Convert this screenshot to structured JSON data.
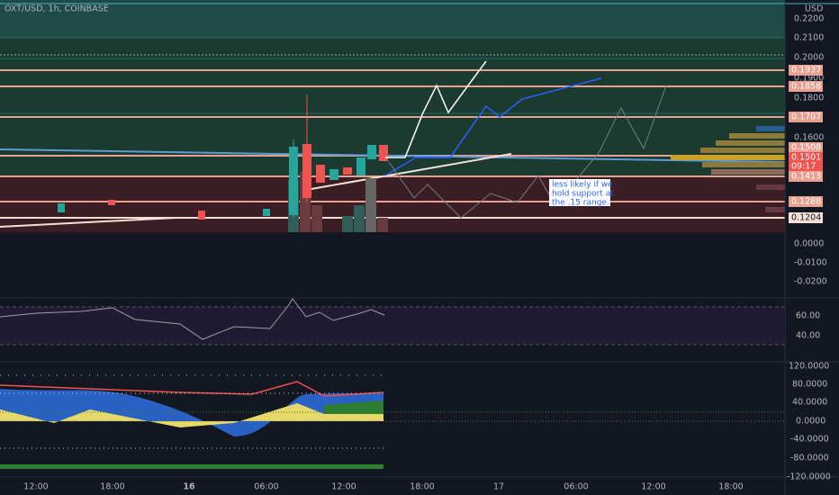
{
  "header": {
    "symbol": "OXT/USD, 1h, COINBASE",
    "currency": "USD"
  },
  "price_axis": [
    "0.2200",
    "0.2100",
    "0.2000",
    "0.1900",
    "0.1800",
    "0.1600"
  ],
  "price_levels": [
    "0.1937",
    "0.1858",
    "0.1707",
    "0.1508",
    "0.1501",
    "0.1413",
    "0.1288",
    "0.1204"
  ],
  "countdown": "09:17",
  "volume_axis": [
    "0.0000",
    "-0.0100",
    "-0.0200"
  ],
  "rsi_axis": [
    "60.00",
    "40.00"
  ],
  "osc_axis": [
    "120.0000",
    "80.0000",
    "40.0000",
    "0.0000",
    "-40.0000",
    "-80.0000",
    "-120.0000"
  ],
  "time_axis": [
    "12:00",
    "18:00",
    "16",
    "06:00",
    "12:00",
    "18:00",
    "17",
    "06:00",
    "12:00",
    "18:00"
  ],
  "annotation": [
    "less likely if we",
    "hold support at",
    "the .15 range."
  ]
}
